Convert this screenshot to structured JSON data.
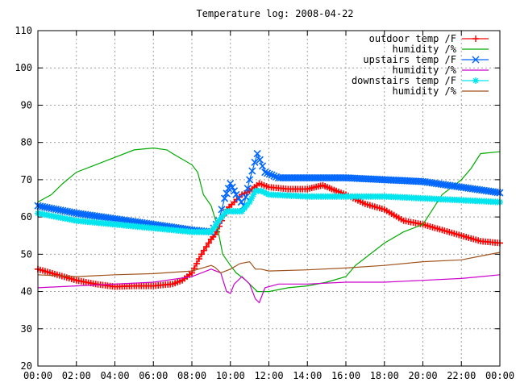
{
  "chart_data": {
    "type": "line",
    "title": "Temperature log: 2008-04-22",
    "xlabel": "",
    "ylabel": "",
    "xlim": [
      0,
      24
    ],
    "ylim": [
      20,
      110
    ],
    "grid": true,
    "legend_position": "top-right",
    "x_ticks": [
      "00:00",
      "02:00",
      "04:00",
      "06:00",
      "08:00",
      "10:00",
      "12:00",
      "14:00",
      "16:00",
      "18:00",
      "20:00",
      "22:00",
      "00:00"
    ],
    "y_ticks": [
      "20",
      "30",
      "40",
      "50",
      "60",
      "70",
      "80",
      "90",
      "100",
      "110"
    ],
    "x_tick_values": [
      0,
      2,
      4,
      6,
      8,
      10,
      12,
      14,
      16,
      18,
      20,
      22,
      24
    ],
    "y_tick_values": [
      20,
      30,
      40,
      50,
      60,
      70,
      80,
      90,
      100,
      110
    ],
    "series": [
      {
        "name": "outdoor temp /F",
        "color": "#ff0000",
        "marker": "plus",
        "points": [
          [
            0,
            46
          ],
          [
            1,
            44.5
          ],
          [
            2,
            43
          ],
          [
            3,
            42
          ],
          [
            4,
            41.3
          ],
          [
            5,
            41.5
          ],
          [
            6,
            41.5
          ],
          [
            7,
            42
          ],
          [
            7.5,
            43
          ],
          [
            8,
            45
          ],
          [
            8.5,
            50
          ],
          [
            9,
            54
          ],
          [
            9.3,
            56
          ],
          [
            9.8,
            62
          ],
          [
            10.2,
            64
          ],
          [
            10.6,
            66
          ],
          [
            11,
            67
          ],
          [
            11.5,
            69
          ],
          [
            12,
            68
          ],
          [
            13,
            67.5
          ],
          [
            14,
            67.5
          ],
          [
            14.8,
            68.5
          ],
          [
            15.5,
            67
          ],
          [
            16,
            66
          ],
          [
            17,
            63.5
          ],
          [
            18,
            62
          ],
          [
            19,
            59
          ],
          [
            20,
            58
          ],
          [
            21,
            56.5
          ],
          [
            22,
            55
          ],
          [
            23,
            53.5
          ],
          [
            24,
            53
          ]
        ]
      },
      {
        "name": "humidity /%",
        "color": "#00aa00",
        "marker": "line",
        "points": [
          [
            0,
            64
          ],
          [
            0.7,
            66
          ],
          [
            1.3,
            69
          ],
          [
            2,
            72
          ],
          [
            3,
            74
          ],
          [
            4,
            76
          ],
          [
            5,
            78
          ],
          [
            6,
            78.5
          ],
          [
            6.7,
            78
          ],
          [
            7,
            77
          ],
          [
            8,
            74
          ],
          [
            8.3,
            72
          ],
          [
            8.6,
            66
          ],
          [
            9,
            63
          ],
          [
            9.3,
            58
          ],
          [
            9.6,
            50
          ],
          [
            10,
            47
          ],
          [
            10.3,
            45
          ],
          [
            10.8,
            43
          ],
          [
            11,
            42
          ],
          [
            11.4,
            40
          ],
          [
            12,
            40
          ],
          [
            13,
            41
          ],
          [
            14,
            41.5
          ],
          [
            15,
            42.5
          ],
          [
            16,
            44
          ],
          [
            16.5,
            47
          ],
          [
            17,
            49
          ],
          [
            18,
            53
          ],
          [
            19,
            56
          ],
          [
            20,
            58
          ],
          [
            21,
            66
          ],
          [
            22,
            70
          ],
          [
            22.5,
            73
          ],
          [
            23,
            77
          ],
          [
            24,
            77.5
          ]
        ]
      },
      {
        "name": "upstairs temp /F",
        "color": "#0066ff",
        "marker": "cross",
        "points": [
          [
            0,
            63
          ],
          [
            2,
            61
          ],
          [
            4,
            59.5
          ],
          [
            6,
            58
          ],
          [
            8,
            56.5
          ],
          [
            9,
            56
          ],
          [
            9.4,
            59
          ],
          [
            9.7,
            65
          ],
          [
            10,
            69
          ],
          [
            10.3,
            66
          ],
          [
            10.7,
            63
          ],
          [
            11,
            70
          ],
          [
            11.4,
            77
          ],
          [
            11.8,
            72
          ],
          [
            12.5,
            70.5
          ],
          [
            14,
            70.5
          ],
          [
            16,
            70.5
          ],
          [
            18,
            70
          ],
          [
            20,
            69.5
          ],
          [
            22,
            68
          ],
          [
            24,
            66.5
          ]
        ]
      },
      {
        "name": "humidity /%",
        "color": "#cc00cc",
        "marker": "line",
        "points": [
          [
            0,
            41
          ],
          [
            2,
            41.5
          ],
          [
            4,
            42
          ],
          [
            6,
            42.5
          ],
          [
            8,
            44
          ],
          [
            9,
            46
          ],
          [
            9.5,
            45
          ],
          [
            9.8,
            40
          ],
          [
            10,
            39.5
          ],
          [
            10.2,
            42
          ],
          [
            10.6,
            44
          ],
          [
            11,
            42
          ],
          [
            11.3,
            38
          ],
          [
            11.5,
            37
          ],
          [
            11.8,
            41
          ],
          [
            12.5,
            42
          ],
          [
            14,
            42
          ],
          [
            16,
            42.5
          ],
          [
            18,
            42.5
          ],
          [
            20,
            43
          ],
          [
            22,
            43.5
          ],
          [
            23,
            44
          ],
          [
            24,
            44.5
          ]
        ]
      },
      {
        "name": "downstairs temp /F",
        "color": "#00e5ee",
        "marker": "star",
        "points": [
          [
            0,
            61
          ],
          [
            2,
            59
          ],
          [
            4,
            58
          ],
          [
            6,
            57
          ],
          [
            8,
            56
          ],
          [
            9,
            56
          ],
          [
            9.4,
            59
          ],
          [
            9.8,
            61.5
          ],
          [
            10.6,
            61.5
          ],
          [
            11,
            64
          ],
          [
            11.3,
            67
          ],
          [
            11.6,
            67
          ],
          [
            12,
            66
          ],
          [
            14,
            65.5
          ],
          [
            16,
            65.5
          ],
          [
            18,
            65.5
          ],
          [
            20,
            65
          ],
          [
            22,
            64.5
          ],
          [
            24,
            64
          ]
        ]
      },
      {
        "name": "humidity /%",
        "color": "#a0521c",
        "marker": "line",
        "points": [
          [
            0,
            44.5
          ],
          [
            2,
            44
          ],
          [
            4,
            44.5
          ],
          [
            6,
            44.8
          ],
          [
            8,
            45.5
          ],
          [
            9,
            47
          ],
          [
            9.2,
            46.5
          ],
          [
            9.5,
            45
          ],
          [
            10,
            46
          ],
          [
            10.5,
            47.5
          ],
          [
            11,
            48
          ],
          [
            11.3,
            46
          ],
          [
            11.6,
            46
          ],
          [
            12,
            45.5
          ],
          [
            14,
            45.8
          ],
          [
            16,
            46.3
          ],
          [
            18,
            47
          ],
          [
            20,
            48
          ],
          [
            22,
            48.5
          ],
          [
            23,
            49.5
          ],
          [
            24,
            50.5
          ]
        ]
      }
    ]
  }
}
